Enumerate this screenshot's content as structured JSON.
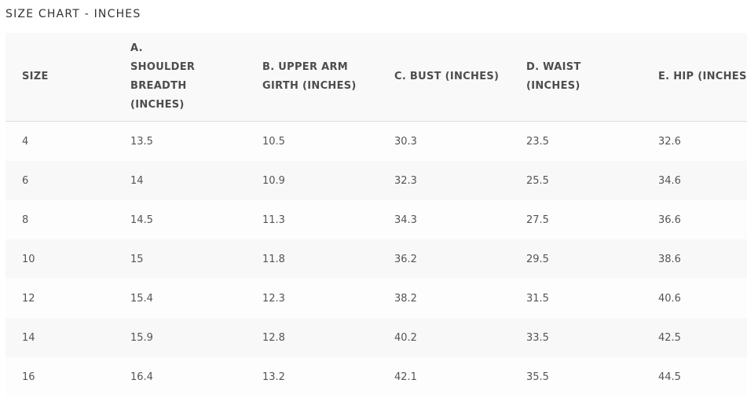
{
  "title": "SIZE CHART - INCHES",
  "table": {
    "columns": [
      "SIZE",
      "A. SHOULDER BREADTH (INCHES)",
      "B. UPPER ARM GIRTH (INCHES)",
      "C. BUST (INCHES)",
      "D. WAIST (INCHES)",
      "E. HIP (INCHES)"
    ],
    "rows": [
      [
        "4",
        "13.5",
        "10.5",
        "30.3",
        "23.5",
        "32.6"
      ],
      [
        "6",
        "14",
        "10.9",
        "32.3",
        "25.5",
        "34.6"
      ],
      [
        "8",
        "14.5",
        "11.3",
        "34.3",
        "27.5",
        "36.6"
      ],
      [
        "10",
        "15",
        "11.8",
        "36.2",
        "29.5",
        "38.6"
      ],
      [
        "12",
        "15.4",
        "12.3",
        "38.2",
        "31.5",
        "40.6"
      ],
      [
        "14",
        "15.9",
        "12.8",
        "40.2",
        "33.5",
        "42.5"
      ],
      [
        "16",
        "16.4",
        "13.2",
        "42.1",
        "35.5",
        "44.5"
      ]
    ]
  }
}
